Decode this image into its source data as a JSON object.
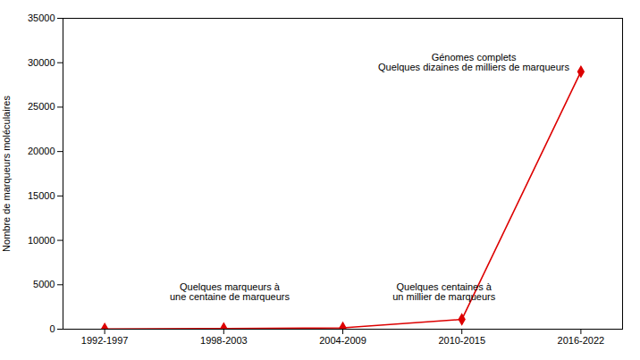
{
  "chart_data": {
    "type": "line",
    "categories": [
      "1992-1997",
      "1998-2003",
      "2004-2009",
      "2010-2015",
      "2016-2022"
    ],
    "values": [
      30,
      80,
      150,
      1100,
      29000
    ],
    "color": "#dd0000",
    "marker": "diamond",
    "ylabel": "Nombre de marqueurs moléculaires",
    "ylim": [
      0,
      35000
    ],
    "yticks": [
      0,
      5000,
      10000,
      15000,
      20000,
      25000,
      30000,
      35000
    ],
    "grid": false,
    "annotations": [
      "Quelques marqueurs à\nune centaine de marqueurs",
      "Quelques centaines à\nun millier de marqueurs",
      "Génomes complets\nQuelques dizaines de milliers de marqueurs"
    ]
  }
}
